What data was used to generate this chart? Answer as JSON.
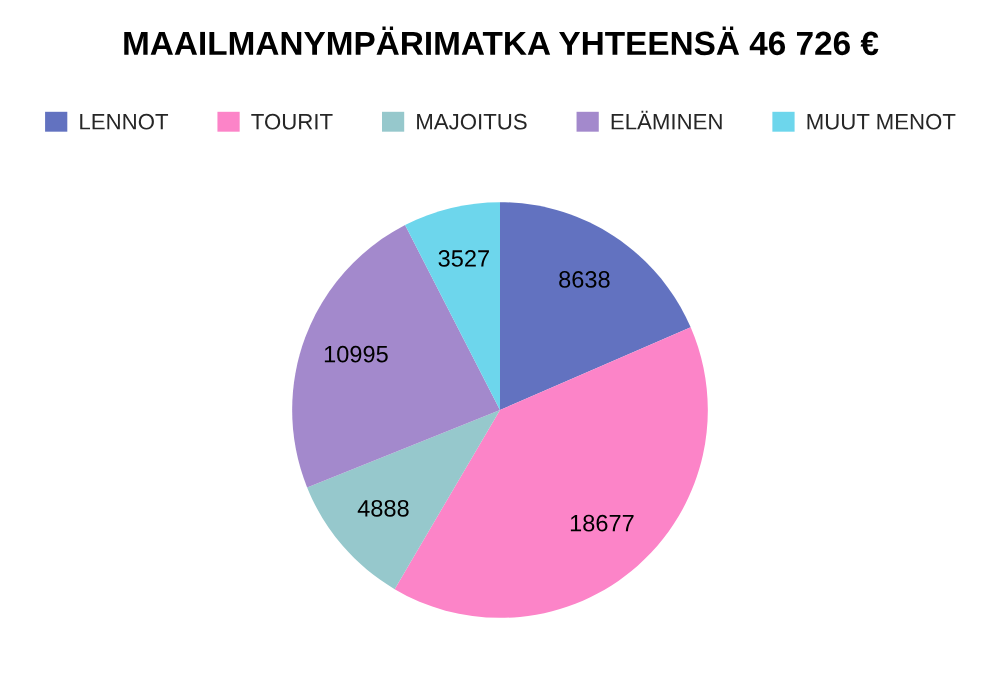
{
  "chart_data": {
    "type": "pie",
    "title": "MAAILMANYMPÄRIMATKA YHTEENSÄ 46 726 €",
    "categories": [
      "LENNOT",
      "TOURIT",
      "MAJOITUS",
      "ELÄMINEN",
      "MUUT MENOT"
    ],
    "values": [
      8638,
      18677,
      4888,
      10995,
      3527
    ],
    "colors": [
      "#6272c0",
      "#fc84c8",
      "#96c8cc",
      "#a389cc",
      "#6dd6ec"
    ],
    "data_labels": true,
    "legend": "top"
  }
}
